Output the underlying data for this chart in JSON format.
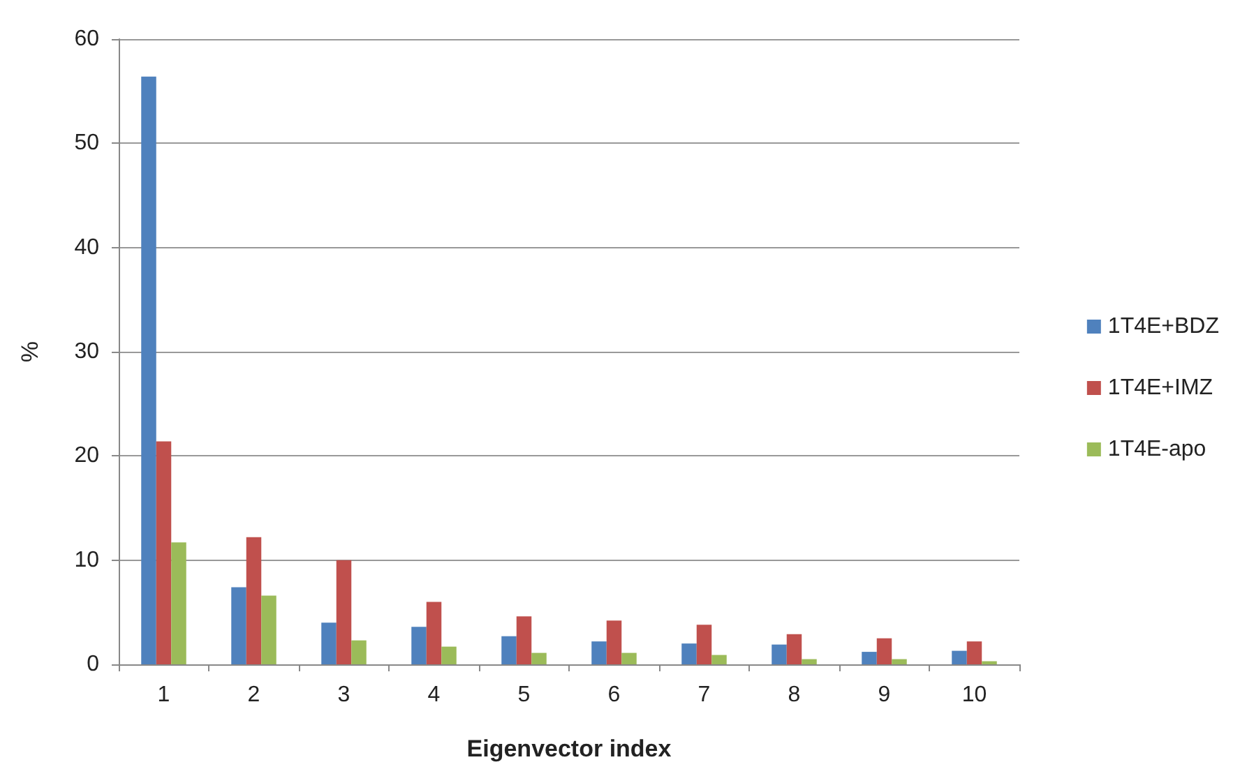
{
  "chart_data": {
    "type": "bar",
    "xlabel": "Eigenvector index",
    "ylabel": "%",
    "categories": [
      "1",
      "2",
      "3",
      "4",
      "5",
      "6",
      "7",
      "8",
      "9",
      "10"
    ],
    "series": [
      {
        "name": "1T4E+BDZ",
        "color": "#4f81bd",
        "values": [
          56.4,
          7.4,
          4.0,
          3.6,
          2.7,
          2.2,
          2.0,
          1.9,
          1.2,
          1.3
        ]
      },
      {
        "name": "1T4E+IMZ",
        "color": "#c0504d",
        "values": [
          21.4,
          12.2,
          10.0,
          6.0,
          4.6,
          4.2,
          3.8,
          2.9,
          2.5,
          2.2
        ]
      },
      {
        "name": "1T4E-apo",
        "color": "#9bbb59",
        "values": [
          11.7,
          6.6,
          2.3,
          1.7,
          1.1,
          1.1,
          0.9,
          0.5,
          0.5,
          0.3
        ]
      }
    ],
    "ylim": [
      0,
      60
    ],
    "yticks": [
      0,
      10,
      20,
      30,
      40,
      50,
      60
    ],
    "grid": "y",
    "legend": "right"
  }
}
